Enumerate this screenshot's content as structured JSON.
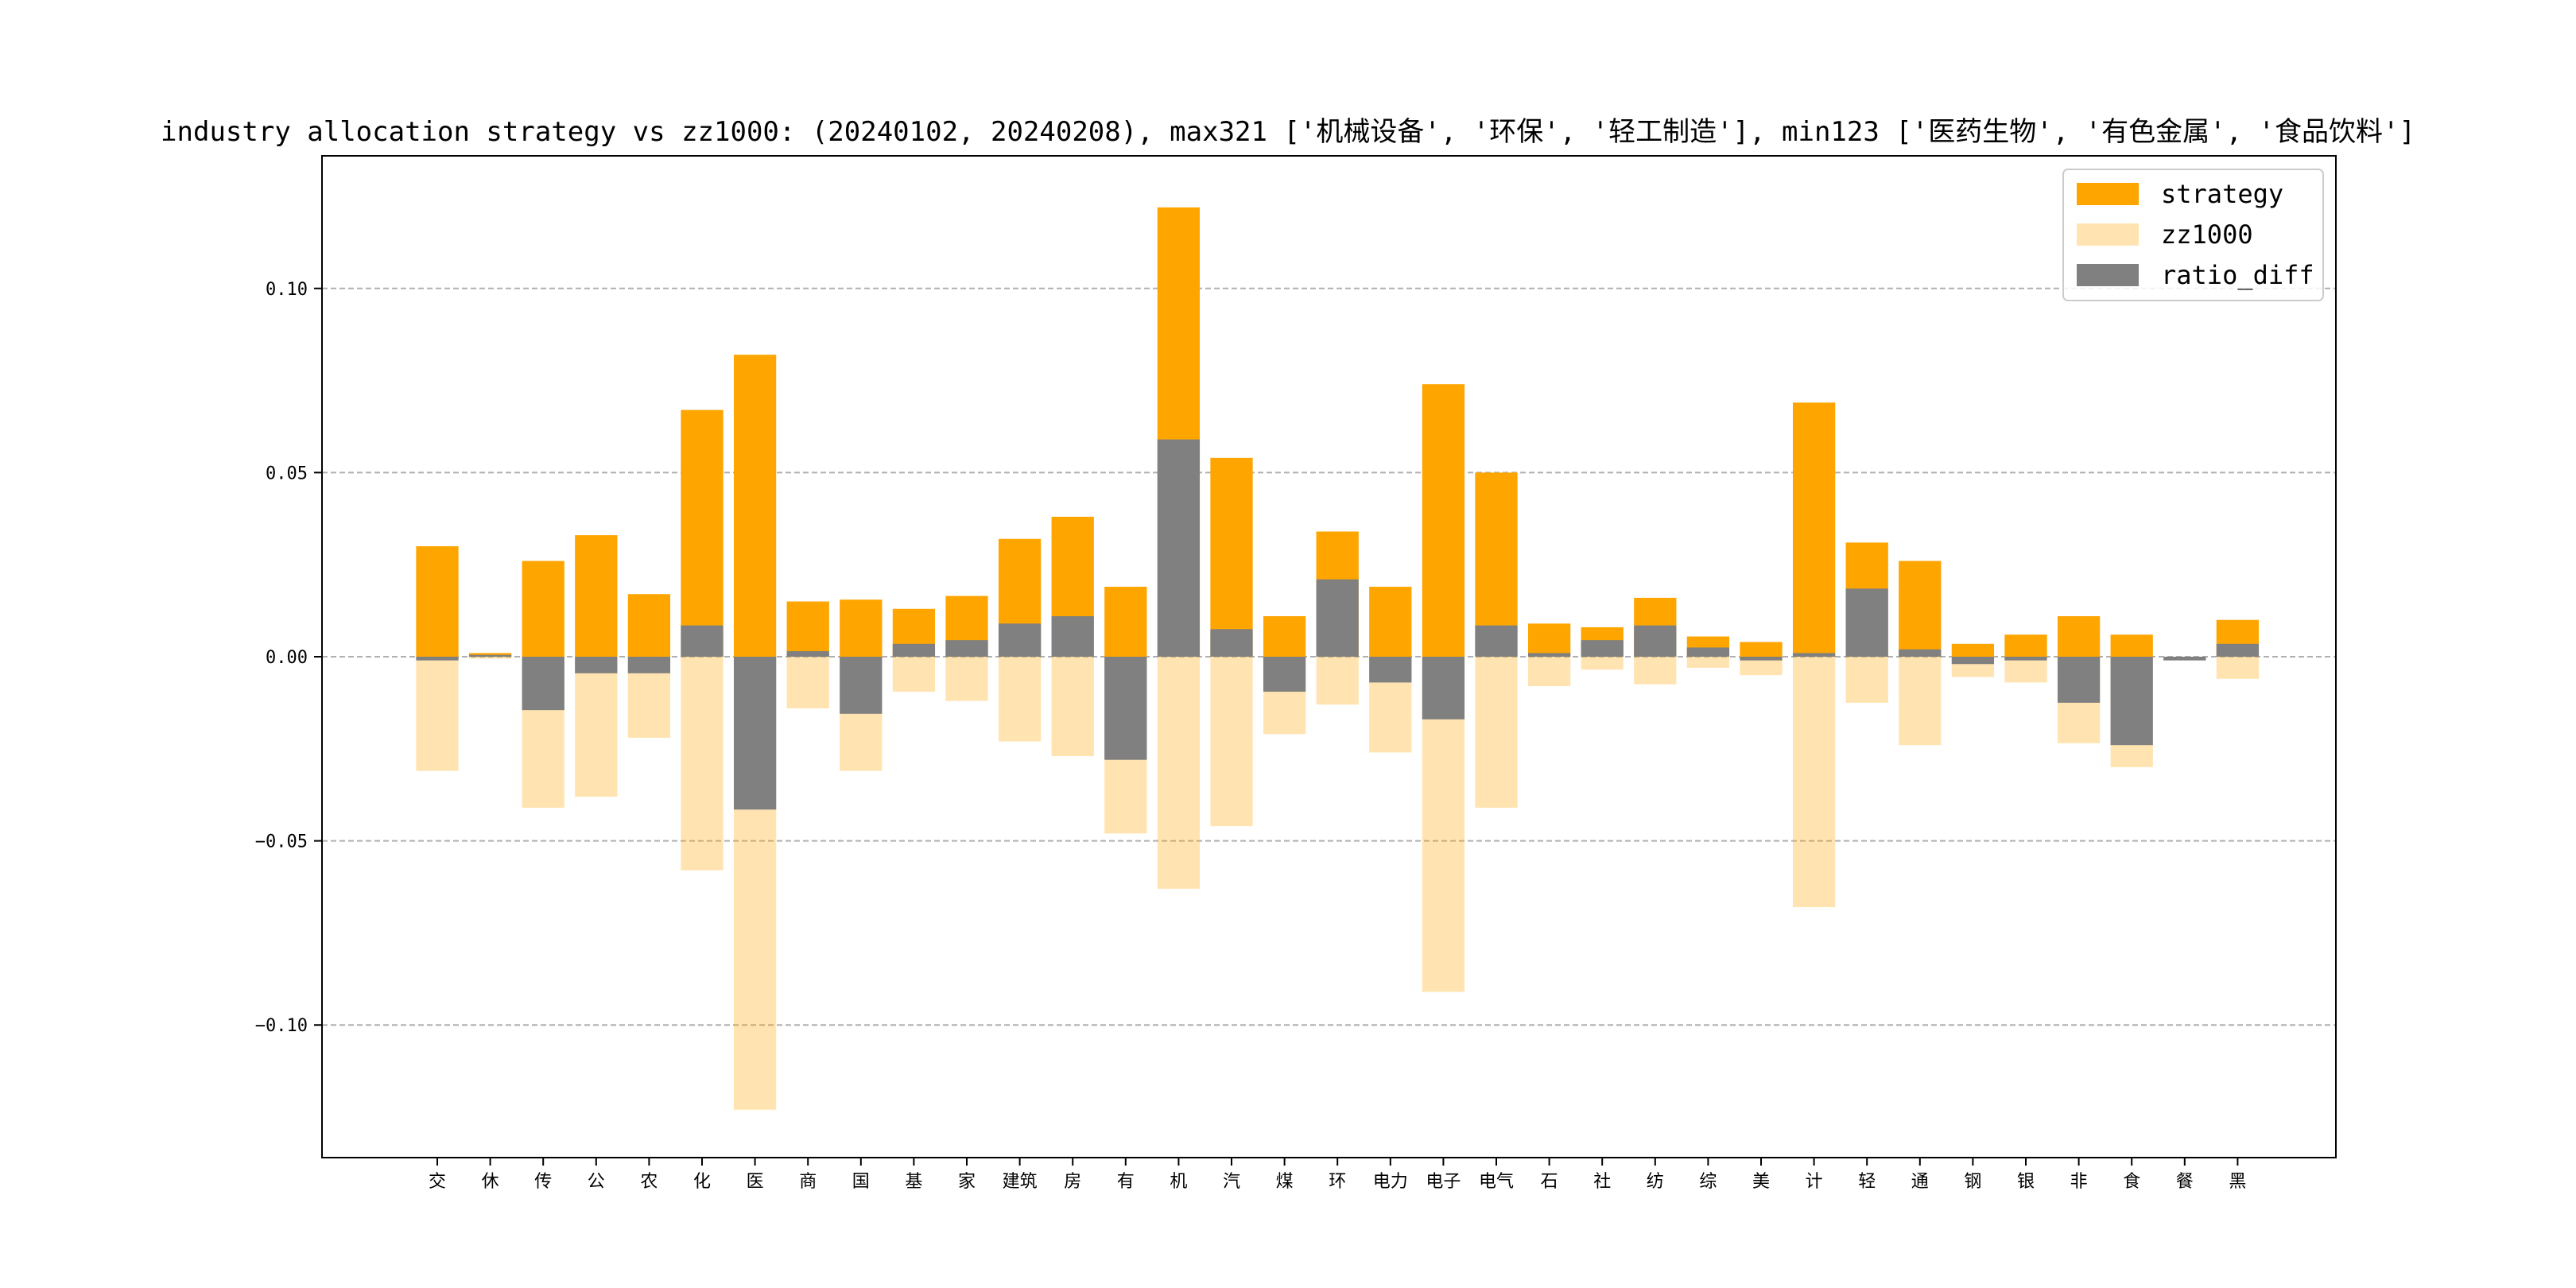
{
  "chart_data": {
    "type": "bar",
    "title": "industry allocation strategy vs zz1000: (20240102, 20240208), max321 ['机械设备', '环保', '轻工制造'], min123 ['医药生物', '有色金属', '食品饮料']",
    "xlabel": "",
    "ylabel": "",
    "ylim": [
      -0.136,
      0.136
    ],
    "yticks": [
      0.1,
      0.05,
      0.0,
      -0.05,
      -0.1
    ],
    "ytick_labels": [
      "0.10",
      "0.05",
      "0.00",
      "−0.05",
      "−0.10"
    ],
    "grid": "horizontal dashed",
    "legend_position": "top-right",
    "categories": [
      "交",
      "休",
      "传",
      "公",
      "农",
      "化",
      "医",
      "商",
      "国",
      "基",
      "家",
      "建筑",
      "房",
      "有",
      "机",
      "汽",
      "煤",
      "环",
      "电力",
      "电子",
      "电气",
      "石",
      "社",
      "纺",
      "综",
      "美",
      "计",
      "轻",
      "通",
      "钢",
      "银",
      "非",
      "食",
      "餐",
      "黑"
    ],
    "series": [
      {
        "name": "strategy",
        "color": "#FFA500",
        "opacity": 1.0,
        "values": [
          0.03,
          0.001,
          0.026,
          0.033,
          0.017,
          0.067,
          0.082,
          0.015,
          0.0155,
          0.013,
          0.0165,
          0.032,
          0.038,
          0.019,
          0.122,
          0.054,
          0.011,
          0.034,
          0.019,
          0.074,
          0.05,
          0.009,
          0.008,
          0.016,
          0.0055,
          0.004,
          0.069,
          0.031,
          0.026,
          0.0035,
          0.006,
          0.011,
          0.006,
          0.0,
          0.01
        ]
      },
      {
        "name": "zz1000",
        "color": "#FFA500",
        "opacity": 0.3,
        "values": [
          -0.031,
          -0.0005,
          -0.041,
          -0.038,
          -0.022,
          -0.058,
          -0.123,
          -0.014,
          -0.031,
          -0.0095,
          -0.012,
          -0.023,
          -0.027,
          -0.048,
          -0.063,
          -0.046,
          -0.021,
          -0.013,
          -0.026,
          -0.091,
          -0.041,
          -0.008,
          -0.0035,
          -0.0075,
          -0.003,
          -0.005,
          -0.068,
          -0.0125,
          -0.024,
          -0.0055,
          -0.007,
          -0.0235,
          -0.03,
          -0.001,
          -0.006
        ]
      },
      {
        "name": "ratio_diff",
        "color": "#808080",
        "opacity": 1.0,
        "values": [
          -0.001,
          0.0005,
          -0.0145,
          -0.0045,
          -0.0045,
          0.0085,
          -0.0415,
          0.0015,
          -0.0155,
          0.0035,
          0.0045,
          0.009,
          0.011,
          -0.028,
          0.059,
          0.0075,
          -0.0095,
          0.021,
          -0.007,
          -0.017,
          0.0085,
          0.001,
          0.0045,
          0.0085,
          0.0025,
          -0.001,
          0.001,
          0.0185,
          0.002,
          -0.002,
          -0.001,
          -0.0125,
          -0.024,
          -0.001,
          0.0035
        ]
      }
    ]
  }
}
